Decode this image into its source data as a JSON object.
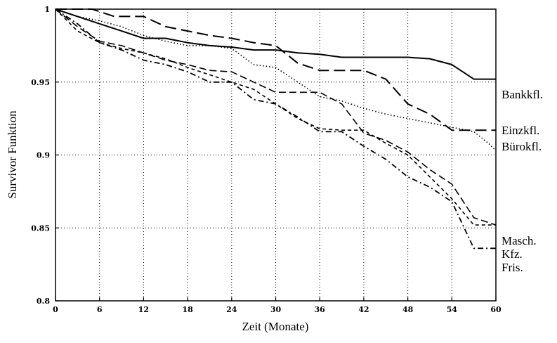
{
  "chart_data": {
    "type": "line",
    "xlabel": "Zeit (Monate)",
    "ylabel": "Survivor Funktion",
    "xlim": [
      0,
      60
    ],
    "ylim": [
      0.8,
      1
    ],
    "x_ticks": [
      "0",
      "6",
      "12",
      "18",
      "24",
      "30",
      "36",
      "42",
      "48",
      "54",
      "60"
    ],
    "y_ticks": [
      "0.8",
      "0.85",
      "0.9",
      "0.95",
      "1"
    ],
    "grid": "dotted at y=0.85, 0.9, 0.95 and at each x tick",
    "series": [
      {
        "name": "Bankkfl.",
        "style": "solid",
        "x": [
          0,
          3,
          6,
          9,
          12,
          15,
          18,
          21,
          24,
          27,
          30,
          33,
          36,
          39,
          42,
          45,
          48,
          51,
          54,
          57,
          60
        ],
        "y": [
          1,
          0.995,
          0.99,
          0.985,
          0.98,
          0.98,
          0.977,
          0.975,
          0.974,
          0.972,
          0.972,
          0.97,
          0.969,
          0.967,
          0.967,
          0.967,
          0.967,
          0.966,
          0.962,
          0.952,
          0.952
        ]
      },
      {
        "name": "Einzkfl.",
        "style": "long-dash",
        "x": [
          0,
          5,
          8,
          12,
          15,
          18,
          21,
          24,
          27,
          30,
          33,
          36,
          39,
          42,
          45,
          48,
          51,
          54,
          57,
          60
        ],
        "y": [
          1,
          1,
          0.995,
          0.995,
          0.988,
          0.985,
          0.982,
          0.98,
          0.977,
          0.975,
          0.963,
          0.958,
          0.958,
          0.958,
          0.952,
          0.935,
          0.928,
          0.917,
          0.917,
          0.917
        ]
      },
      {
        "name": "Bürokfl.",
        "style": "dotted",
        "x": [
          0,
          3,
          6,
          9,
          12,
          15,
          18,
          21,
          24,
          27,
          30,
          33,
          36,
          39,
          42,
          45,
          48,
          51,
          54,
          57,
          59,
          60
        ],
        "y": [
          1,
          0.995,
          0.992,
          0.988,
          0.982,
          0.978,
          0.975,
          0.975,
          0.973,
          0.962,
          0.96,
          0.95,
          0.94,
          0.937,
          0.932,
          0.928,
          0.925,
          0.922,
          0.919,
          0.916,
          0.908,
          0.903
        ]
      },
      {
        "name": "Masch.",
        "style": "medium-dash",
        "x": [
          0,
          3,
          6,
          9,
          12,
          15,
          18,
          21,
          24,
          27,
          30,
          33,
          36,
          39,
          42,
          45,
          48,
          51,
          54,
          57,
          60
        ],
        "y": [
          1,
          0.988,
          0.978,
          0.975,
          0.97,
          0.965,
          0.962,
          0.958,
          0.957,
          0.95,
          0.943,
          0.943,
          0.943,
          0.935,
          0.915,
          0.91,
          0.902,
          0.89,
          0.88,
          0.857,
          0.852
        ]
      },
      {
        "name": "Kfz.",
        "style": "short-dash",
        "x": [
          0,
          3,
          6,
          9,
          12,
          15,
          18,
          21,
          24,
          27,
          30,
          33,
          36,
          39,
          42,
          45,
          48,
          51,
          54,
          57,
          60
        ],
        "y": [
          1,
          0.985,
          0.977,
          0.973,
          0.97,
          0.966,
          0.96,
          0.955,
          0.95,
          0.945,
          0.935,
          0.925,
          0.918,
          0.917,
          0.917,
          0.908,
          0.9,
          0.885,
          0.87,
          0.852,
          0.852
        ]
      },
      {
        "name": "Fris.",
        "style": "dash-dot",
        "x": [
          0,
          3,
          6,
          9,
          12,
          15,
          18,
          21,
          24,
          27,
          30,
          33,
          36,
          39,
          42,
          45,
          48,
          51,
          54,
          57,
          60
        ],
        "y": [
          1,
          0.99,
          0.977,
          0.972,
          0.965,
          0.962,
          0.957,
          0.95,
          0.95,
          0.938,
          0.935,
          0.926,
          0.916,
          0.916,
          0.906,
          0.897,
          0.885,
          0.878,
          0.868,
          0.836,
          0.836
        ]
      }
    ]
  }
}
